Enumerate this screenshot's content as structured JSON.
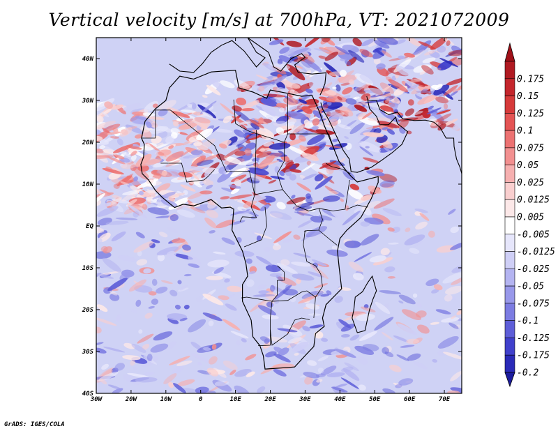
{
  "title": "Vertical velocity [m/s] at 700hPa, VT: 2021072009",
  "footer": "GrADS: IGES/COLA",
  "map": {
    "lon_range": [
      -30,
      75
    ],
    "lat_range": [
      -40,
      45
    ],
    "lat_ticks": [
      {
        "value": 40,
        "label": "40N"
      },
      {
        "value": 30,
        "label": "30N"
      },
      {
        "value": 20,
        "label": "20N"
      },
      {
        "value": 10,
        "label": "10N"
      },
      {
        "value": 0,
        "label": "EQ"
      },
      {
        "value": -10,
        "label": "10S"
      },
      {
        "value": -20,
        "label": "20S"
      },
      {
        "value": -30,
        "label": "30S"
      },
      {
        "value": -40,
        "label": "40S"
      }
    ],
    "lon_ticks": [
      {
        "value": -30,
        "label": "30W"
      },
      {
        "value": -20,
        "label": "20W"
      },
      {
        "value": -10,
        "label": "10W"
      },
      {
        "value": 0,
        "label": "0"
      },
      {
        "value": 10,
        "label": "10E"
      },
      {
        "value": 20,
        "label": "20E"
      },
      {
        "value": 30,
        "label": "30E"
      },
      {
        "value": 40,
        "label": "40E"
      },
      {
        "value": 50,
        "label": "50E"
      },
      {
        "value": 60,
        "label": "60E"
      },
      {
        "value": 70,
        "label": "70E"
      }
    ],
    "colors": {
      "background": "#cfd2f5",
      "coastline": "#000000"
    }
  },
  "colorbar": {
    "levels": [
      {
        "label": "0.175",
        "color": "#b01a22"
      },
      {
        "label": "0.15",
        "color": "#c4262c"
      },
      {
        "label": "0.125",
        "color": "#d63a3a"
      },
      {
        "label": "0.1",
        "color": "#e45454"
      },
      {
        "label": "0.075",
        "color": "#ec7272"
      },
      {
        "label": "0.05",
        "color": "#f29090"
      },
      {
        "label": "0.025",
        "color": "#f6b0b0"
      },
      {
        "label": "0.0125",
        "color": "#f9cfcf"
      },
      {
        "label": "0.005",
        "color": "#fce8e8"
      },
      {
        "label": "-0.005",
        "color": "#ffffff"
      },
      {
        "label": "-0.0125",
        "color": "#e6e6fb"
      },
      {
        "label": "-0.025",
        "color": "#cfcff6"
      },
      {
        "label": "-0.05",
        "color": "#b4b4f1"
      },
      {
        "label": "-0.075",
        "color": "#9898ea"
      },
      {
        "label": "-0.1",
        "color": "#7c7ce2"
      },
      {
        "label": "-0.125",
        "color": "#5e5ed8"
      },
      {
        "label": "-0.175",
        "color": "#4040cc"
      },
      {
        "label": "-0.2",
        "color": "#2a2ab8"
      }
    ],
    "top_arrow_color": "#a01018",
    "bottom_arrow_color": "#1c1c9e"
  }
}
